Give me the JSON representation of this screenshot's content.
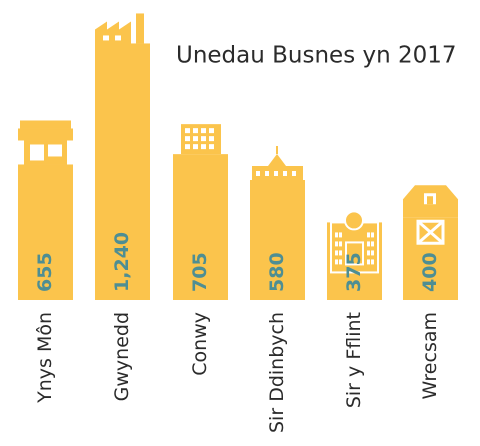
{
  "chart_data": {
    "type": "bar",
    "title": "Unedau Busnes yn 2017",
    "categories": [
      "Ynys Môn",
      "Gwynedd",
      "Conwy",
      "Sir Ddinbych",
      "Sir y Fflint",
      "Wrecsam"
    ],
    "values": [
      655,
      1240,
      705,
      580,
      375,
      400
    ],
    "value_labels": [
      "655",
      "1,240",
      "705",
      "580",
      "375",
      "400"
    ],
    "color": "#fbc44c",
    "label_color": "#4e8e93",
    "ylim": [
      0,
      1450
    ]
  }
}
